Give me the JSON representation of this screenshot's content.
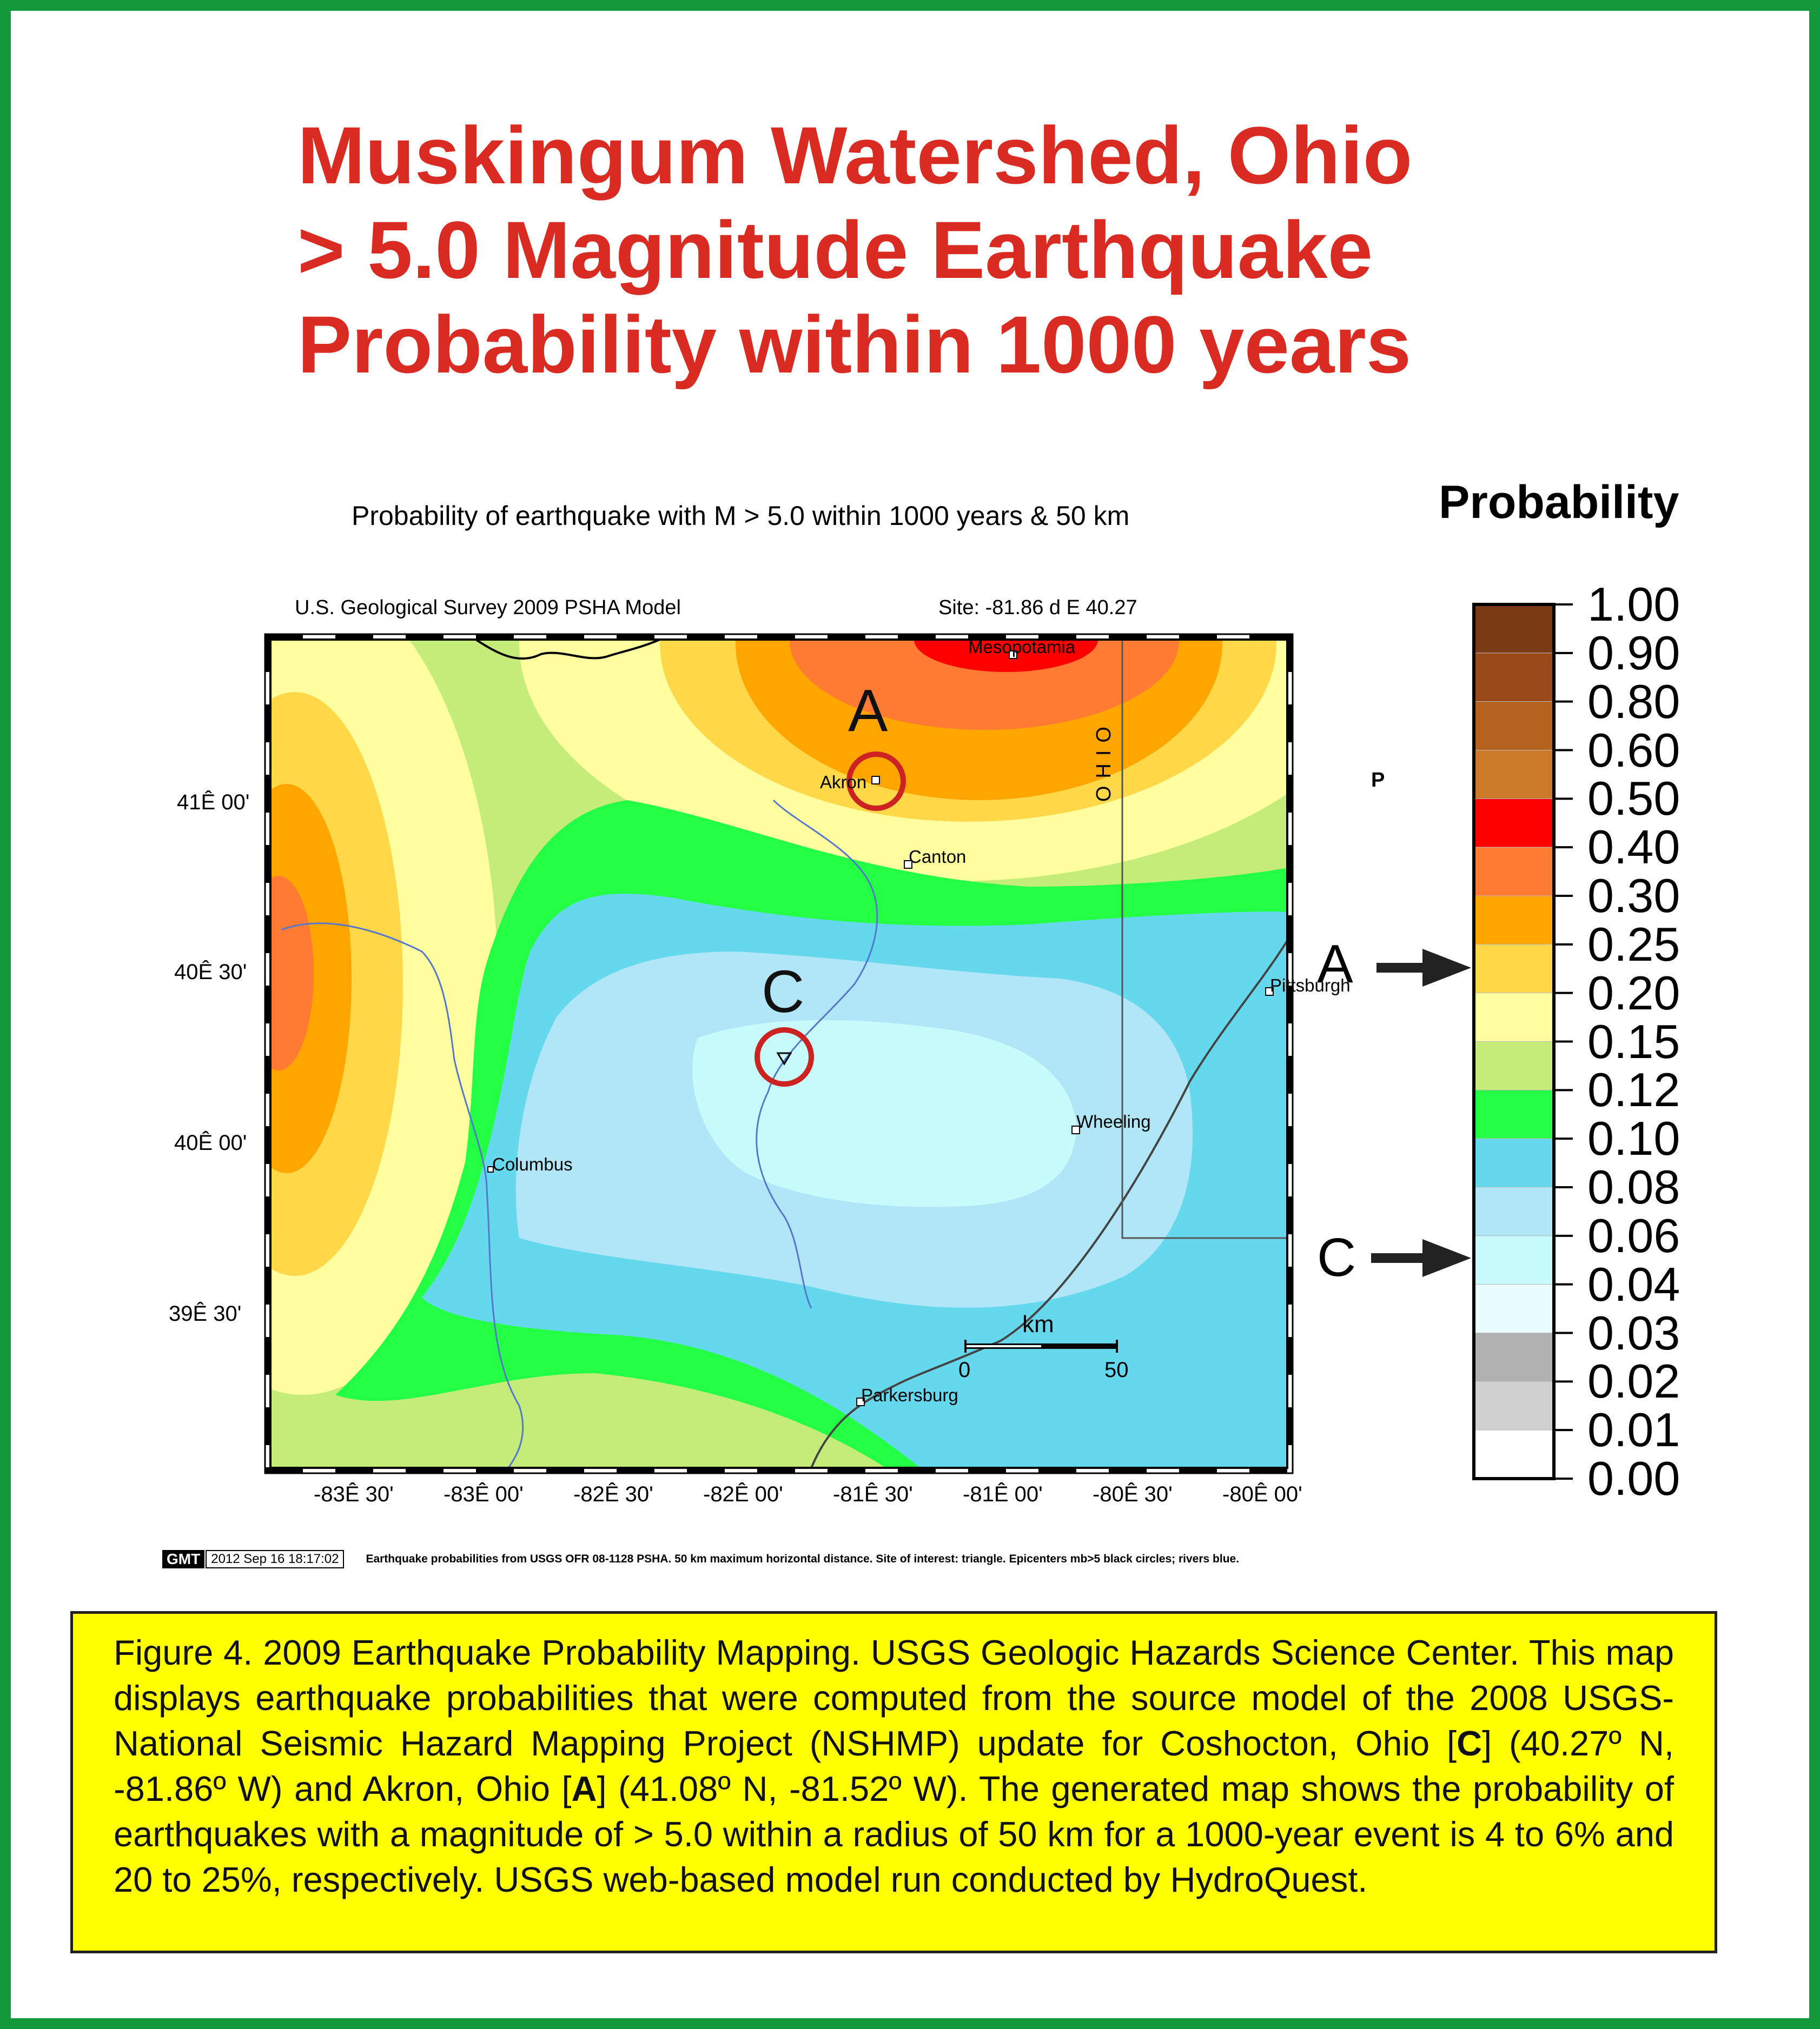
{
  "title": {
    "line1": "Muskingum Watershed, Ohio",
    "line2": "> 5.0 Magnitude Earthquake",
    "line3": "Probability within 1000 years"
  },
  "map": {
    "subtitle": "Probability of earthquake with M > 5.0 within 1000 years & 50 km",
    "header_left": "U.S. Geological Survey 2009 PSHA Model",
    "header_right": "Site: -81.86  d E 40.27",
    "lat_labels": [
      "41Ê 00'",
      "40Ê 30'",
      "40Ê 00'",
      "39Ê 30'"
    ],
    "lon_labels": [
      "-83Ê 30'",
      "-83Ê 00'",
      "-82Ê 30'",
      "-82Ê 00'",
      "-81Ê 30'",
      "-81Ê 00'",
      "-80Ê 30'",
      "-80Ê 00'"
    ],
    "cities": {
      "mesopotamia": "Mesopotamia",
      "akron": "Akron",
      "canton": "Canton",
      "pittsburgh": "Pittsburgh",
      "wheeling": "Wheeling",
      "columbus": "Columbus",
      "parkersburg": "Parkersburg"
    },
    "state_label": "OHIO",
    "p_label": "P",
    "site_a": "A",
    "site_c": "C",
    "scale_unit": "km",
    "scale_start": "0",
    "scale_end": "50"
  },
  "legend": {
    "title": "Probability",
    "ticks": [
      "1.00",
      "0.90",
      "0.80",
      "0.60",
      "0.50",
      "0.40",
      "0.30",
      "0.25",
      "0.20",
      "0.15",
      "0.12",
      "0.10",
      "0.08",
      "0.06",
      "0.04",
      "0.03",
      "0.02",
      "0.01",
      "0.00"
    ],
    "colors": [
      "#7a3a16",
      "#9a4a1a",
      "#b5621f",
      "#cc7a2a",
      "#ff0000",
      "#ff7a33",
      "#ffa500",
      "#ffd84a",
      "#ffffa0",
      "#c4ec7a",
      "#22ff44",
      "#66d8ee",
      "#b0e6f8",
      "#c8fcfc",
      "#e8fefe",
      "#b0b0b0",
      "#d0d0d0",
      "#ffffff"
    ],
    "arrow_a": "A",
    "arrow_c": "C"
  },
  "gmt": {
    "badge": "GMT",
    "date": "2012 Sep 16 18:17:02",
    "note": "Earthquake probabilities from USGS OFR 08-1128 PSHA. 50 km maximum horizontal distance. Site of interest: triangle. Epicenters mb>5 black circles; rivers blue."
  },
  "caption": {
    "part1": "Figure 4.  2009 Earthquake Probability Mapping. USGS Geologic Hazards Science Center. This map displays earthquake probabilities that were computed from the source model of the 2008 USGS-National Seismic Hazard Mapping Project (NSHMP) update for Coshocton, Ohio [",
    "bold_c": "C",
    "part2": "] (40.27º N, -81.86º W) and Akron, Ohio [",
    "bold_a": "A",
    "part3": "] (41.08º N, -81.52º W). The generated map shows the probability of earthquakes with a magnitude of > 5.0 within a radius of 50 km for a 1000-year event is 4 to 6% and 20 to 25%, respectively.  USGS web-based model run conducted by HydroQuest."
  }
}
